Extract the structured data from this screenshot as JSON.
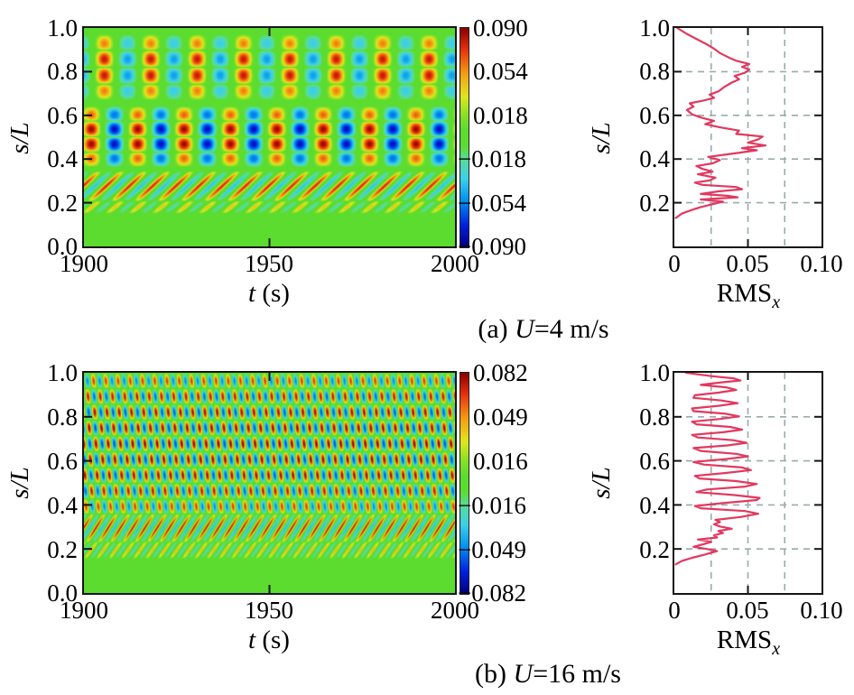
{
  "chart_data": {
    "panels": [
      {
        "caption": {
          "prefix": "(a) ",
          "var": "U",
          "rest": "=4 m/s"
        },
        "heatmap": {
          "type": "heatmap",
          "xlabel": {
            "var": "t",
            "rest": " (s)"
          },
          "ylabel": "s/L",
          "x_ticks": [
            "1900",
            "1950",
            "2000"
          ],
          "y_ticks": [
            "1.0",
            "0.8",
            "0.6",
            "0.4",
            "0.2",
            "0.0"
          ],
          "t_range": [
            1900,
            2000
          ],
          "s_range": [
            0.0,
            1.0
          ],
          "tick_fracs_y": [
            0.2,
            0.4,
            0.6,
            0.8
          ],
          "tick_frac_x": 0.5,
          "pattern": {
            "bands": [
              {
                "type": "standing",
                "s0": 0.665,
                "s1": 0.975,
                "lobes": 4,
                "period": 12.5,
                "phase": -1.2,
                "amp": 0.92,
                "neg": 0.6,
                "sharp": 1.5
              },
              {
                "type": "standing",
                "s0": 0.36,
                "s1": 0.645,
                "lobes": 4,
                "period": 12.5,
                "phase": 0.57,
                "amp": 1.0,
                "neg": 0.9,
                "sharp": 1.5
              },
              {
                "type": "traveling",
                "s0": 0.205,
                "s1": 0.345,
                "wavelength": 0.1,
                "period": 6.25,
                "phase": 0,
                "amp": 0.85,
                "neg": 0.5,
                "sharp": 2.0
              },
              {
                "type": "traveling",
                "s0": 0.15,
                "s1": 0.21,
                "wavelength": 0.09,
                "period": 6.25,
                "phase": 1.5,
                "amp": 0.5,
                "neg": 0.5,
                "sharp": 2.0
              }
            ]
          }
        },
        "colorbar": {
          "ticks": [
            "0.090",
            "0.054",
            "0.018",
            "−0.018",
            "−0.054",
            "−0.090"
          ],
          "vmax": 0.09
        },
        "rms": {
          "type": "line",
          "xlabel": {
            "text": "RMS",
            "sub": "x"
          },
          "ylabel": "s/L",
          "x_ticks": [
            "0",
            "0.05",
            "0.10"
          ],
          "y_ticks": [
            "1.0",
            "0.8",
            "0.6",
            "0.4",
            "0.2"
          ],
          "xlim": [
            0,
            0.1
          ],
          "ylim": [
            0,
            1.0
          ],
          "grid_x": [
            0.025,
            0.05,
            0.075
          ],
          "grid_y": [
            0.2,
            0.4,
            0.6,
            0.8
          ],
          "curve": [
            [
              0.13,
              0.001
            ],
            [
              0.15,
              0.005
            ],
            [
              0.165,
              0.011
            ],
            [
              0.18,
              0.018
            ],
            [
              0.195,
              0.027
            ],
            [
              0.205,
              0.033
            ],
            [
              0.215,
              0.018
            ],
            [
              0.225,
              0.043
            ],
            [
              0.232,
              0.036
            ],
            [
              0.24,
              0.018
            ],
            [
              0.252,
              0.03
            ],
            [
              0.262,
              0.046
            ],
            [
              0.272,
              0.042
            ],
            [
              0.282,
              0.019
            ],
            [
              0.292,
              0.014
            ],
            [
              0.302,
              0.024
            ],
            [
              0.315,
              0.028
            ],
            [
              0.33,
              0.016
            ],
            [
              0.342,
              0.026
            ],
            [
              0.355,
              0.019
            ],
            [
              0.368,
              0.015
            ],
            [
              0.38,
              0.026
            ],
            [
              0.395,
              0.031
            ],
            [
              0.41,
              0.023
            ],
            [
              0.425,
              0.04
            ],
            [
              0.44,
              0.056
            ],
            [
              0.45,
              0.046
            ],
            [
              0.462,
              0.062
            ],
            [
              0.475,
              0.05
            ],
            [
              0.49,
              0.057
            ],
            [
              0.503,
              0.06
            ],
            [
              0.515,
              0.042
            ],
            [
              0.53,
              0.044
            ],
            [
              0.545,
              0.031
            ],
            [
              0.56,
              0.021
            ],
            [
              0.575,
              0.027
            ],
            [
              0.59,
              0.018
            ],
            [
              0.605,
              0.012
            ],
            [
              0.625,
              0.0085
            ],
            [
              0.64,
              0.013
            ],
            [
              0.655,
              0.0105
            ],
            [
              0.668,
              0.02
            ],
            [
              0.68,
              0.027
            ],
            [
              0.695,
              0.024
            ],
            [
              0.71,
              0.03
            ],
            [
              0.73,
              0.034
            ],
            [
              0.75,
              0.039
            ],
            [
              0.765,
              0.044
            ],
            [
              0.78,
              0.041
            ],
            [
              0.795,
              0.048
            ],
            [
              0.81,
              0.051
            ],
            [
              0.822,
              0.046
            ],
            [
              0.835,
              0.051
            ],
            [
              0.85,
              0.042
            ],
            [
              0.865,
              0.037
            ],
            [
              0.885,
              0.031
            ],
            [
              0.905,
              0.027
            ],
            [
              0.925,
              0.022
            ],
            [
              0.95,
              0.015
            ],
            [
              0.975,
              0.008
            ],
            [
              1.0,
              0.002
            ]
          ]
        }
      },
      {
        "caption": {
          "prefix": "(b) ",
          "var": "U",
          "rest": "=16 m/s"
        },
        "heatmap": {
          "type": "heatmap",
          "xlabel": {
            "var": "t",
            "rest": " (s)"
          },
          "ylabel": "s/L",
          "x_ticks": [
            "1900",
            "1950",
            "2000"
          ],
          "y_ticks": [
            "1.0",
            "0.8",
            "0.6",
            "0.4",
            "0.2",
            "0.0"
          ],
          "t_range": [
            1900,
            2000
          ],
          "s_range": [
            0.0,
            1.0
          ],
          "tick_fracs_y": [
            0.2,
            0.4,
            0.6,
            0.8
          ],
          "tick_frac_x": 0.5,
          "pattern": {
            "bands": [
              {
                "type": "rows",
                "s0": 0.355,
                "s1": 1.0,
                "rows": 9,
                "period": 3.3,
                "phase": 0,
                "row_step": 3.45,
                "tilt": 0.9,
                "amp": 1.0,
                "neg": 0.72,
                "sharp": 1.3
              },
              {
                "type": "traveling",
                "s0": 0.23,
                "s1": 0.36,
                "wavelength": 0.09,
                "period": 3.3,
                "phase": 0,
                "amp": 0.9,
                "neg": 0.5,
                "sharp": 2.0
              },
              {
                "type": "traveling",
                "s0": 0.155,
                "s1": 0.235,
                "wavelength": 0.08,
                "period": 3.3,
                "phase": 1.0,
                "amp": 0.55,
                "neg": 0.5,
                "sharp": 2.0
              }
            ]
          }
        },
        "colorbar": {
          "ticks": [
            "0.082",
            "0.049",
            "0.016",
            "−0.016",
            "−0.049",
            "−0.082"
          ],
          "vmax": 0.082
        },
        "rms": {
          "type": "line",
          "xlabel": {
            "text": "RMS",
            "sub": "x"
          },
          "ylabel": "s/L",
          "x_ticks": [
            "0",
            "0.05",
            "0.10"
          ],
          "y_ticks": [
            "1.0",
            "0.8",
            "0.6",
            "0.4",
            "0.2"
          ],
          "xlim": [
            0,
            0.1
          ],
          "ylim": [
            0,
            1.0
          ],
          "grid_x": [
            0.025,
            0.05,
            0.075
          ],
          "grid_y": [
            0.2,
            0.4,
            0.6,
            0.8
          ],
          "curve": [
            [
              0.13,
              0.001
            ],
            [
              0.145,
              0.005
            ],
            [
              0.16,
              0.012
            ],
            [
              0.175,
              0.021
            ],
            [
              0.19,
              0.029
            ],
            [
              0.2,
              0.022
            ],
            [
              0.21,
              0.013
            ],
            [
              0.222,
              0.02
            ],
            [
              0.232,
              0.025
            ],
            [
              0.243,
              0.016
            ],
            [
              0.252,
              0.029
            ],
            [
              0.262,
              0.027
            ],
            [
              0.272,
              0.033
            ],
            [
              0.282,
              0.03
            ],
            [
              0.292,
              0.039
            ],
            [
              0.302,
              0.031
            ],
            [
              0.312,
              0.027
            ],
            [
              0.322,
              0.031
            ],
            [
              0.332,
              0.028
            ],
            [
              0.345,
              0.045
            ],
            [
              0.36,
              0.057
            ],
            [
              0.372,
              0.048
            ],
            [
              0.385,
              0.018
            ],
            [
              0.395,
              0.014
            ],
            [
              0.408,
              0.033
            ],
            [
              0.422,
              0.056
            ],
            [
              0.432,
              0.058
            ],
            [
              0.445,
              0.04
            ],
            [
              0.458,
              0.015
            ],
            [
              0.47,
              0.022
            ],
            [
              0.483,
              0.048
            ],
            [
              0.495,
              0.056
            ],
            [
              0.508,
              0.042
            ],
            [
              0.52,
              0.017
            ],
            [
              0.532,
              0.014
            ],
            [
              0.545,
              0.035
            ],
            [
              0.558,
              0.052
            ],
            [
              0.57,
              0.046
            ],
            [
              0.583,
              0.02
            ],
            [
              0.595,
              0.013
            ],
            [
              0.608,
              0.035
            ],
            [
              0.62,
              0.05
            ],
            [
              0.632,
              0.042
            ],
            [
              0.645,
              0.018
            ],
            [
              0.658,
              0.013
            ],
            [
              0.67,
              0.036
            ],
            [
              0.682,
              0.049
            ],
            [
              0.694,
              0.04
            ],
            [
              0.706,
              0.016
            ],
            [
              0.718,
              0.012
            ],
            [
              0.73,
              0.033
            ],
            [
              0.742,
              0.046
            ],
            [
              0.754,
              0.038
            ],
            [
              0.766,
              0.015
            ],
            [
              0.778,
              0.012
            ],
            [
              0.79,
              0.031
            ],
            [
              0.802,
              0.044
            ],
            [
              0.814,
              0.035
            ],
            [
              0.826,
              0.013
            ],
            [
              0.838,
              0.012
            ],
            [
              0.85,
              0.03
            ],
            [
              0.862,
              0.043
            ],
            [
              0.874,
              0.032
            ],
            [
              0.886,
              0.013
            ],
            [
              0.898,
              0.014
            ],
            [
              0.91,
              0.03
            ],
            [
              0.922,
              0.042
            ],
            [
              0.934,
              0.035
            ],
            [
              0.945,
              0.018
            ],
            [
              0.955,
              0.03
            ],
            [
              0.965,
              0.045
            ],
            [
              0.975,
              0.04
            ],
            [
              0.985,
              0.025
            ],
            [
              1.0,
              0.008
            ]
          ]
        }
      }
    ]
  },
  "style": {
    "curve_color": "#E2385F",
    "grid_color": "#98ABAB",
    "frame_color": "#151515",
    "background_green": "#5BDC2E",
    "colormap": [
      [
        -1.0,
        "#00007F"
      ],
      [
        -0.8,
        "#0020E0"
      ],
      [
        -0.58,
        "#0090F0"
      ],
      [
        -0.38,
        "#3CD0E8"
      ],
      [
        -0.2,
        "#58DC9A"
      ],
      [
        -0.07,
        "#5BDC2E"
      ],
      [
        0.07,
        "#5BDC2E"
      ],
      [
        0.2,
        "#86E026"
      ],
      [
        0.38,
        "#E0E61E"
      ],
      [
        0.58,
        "#F5A012"
      ],
      [
        0.8,
        "#E83410"
      ],
      [
        1.0,
        "#8C0000"
      ]
    ]
  }
}
